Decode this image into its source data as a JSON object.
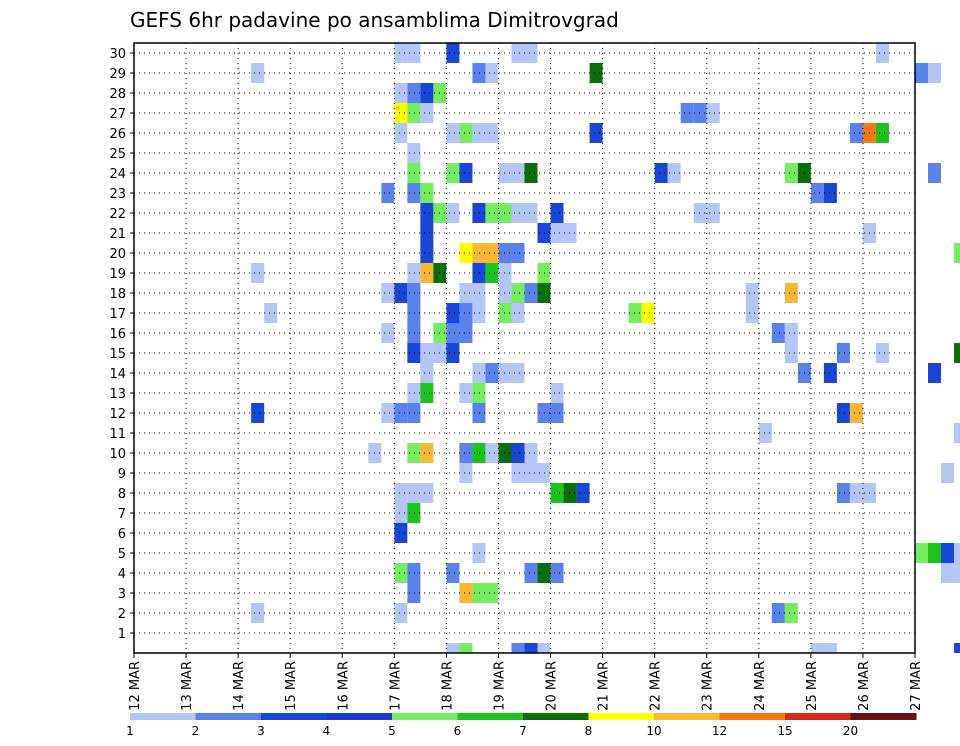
{
  "chart_data": {
    "type": "heatmap",
    "title": "GEFS 6hr padavine po ansamblima Dimitrovgrad",
    "xlabel": "",
    "ylabel": "",
    "members": [
      1,
      2,
      3,
      4,
      5,
      6,
      7,
      8,
      9,
      10,
      11,
      12,
      13,
      14,
      15,
      16,
      17,
      18,
      19,
      20,
      21,
      22,
      23,
      24,
      25,
      26,
      27,
      28,
      29,
      30
    ],
    "y_tick_labels": [
      "1",
      "2",
      "3",
      "4",
      "5",
      "6",
      "7",
      "8",
      "9",
      "10",
      "11",
      "12",
      "13",
      "14",
      "15",
      "16",
      "17",
      "18",
      "19",
      "20",
      "21",
      "22",
      "23",
      "24",
      "25",
      "26",
      "27",
      "28",
      "29",
      "30"
    ],
    "x_tick_labels": [
      "12 MAR",
      "13 MAR",
      "14 MAR",
      "15 MAR",
      "16 MAR",
      "17 MAR",
      "18 MAR",
      "19 MAR",
      "20 MAR",
      "21 MAR",
      "22 MAR",
      "23 MAR",
      "24 MAR",
      "25 MAR",
      "26 MAR",
      "27 MAR"
    ],
    "timestep_hours": 6,
    "grid": "dotted",
    "legend_position": "bottom",
    "color_scale": {
      "labels": [
        "1",
        "2",
        "3",
        "4",
        "5",
        "6",
        "7",
        "8",
        "10",
        "12",
        "15",
        "20"
      ],
      "colors": [
        "#b4c6f5",
        "#5a82ed",
        "#1846d9",
        "#1a37cf",
        "#74ee5e",
        "#1cc41c",
        "#0a6e0a",
        "#ffff00",
        "#fbb731",
        "#f57a14",
        "#d6281b",
        "#6b1010"
      ]
    },
    "cells": [
      [
        "17 MAR 00Z",
        30,
        1
      ],
      [
        "17 MAR 06Z",
        30,
        1
      ],
      [
        "18 MAR 00Z",
        30,
        3
      ],
      [
        "19 MAR 06Z",
        30,
        1
      ],
      [
        "19 MAR 12Z",
        30,
        1
      ],
      [
        "26 MAR 06Z",
        30,
        1
      ],
      [
        "14 MAR 06Z",
        29,
        1
      ],
      [
        "18 MAR 12Z",
        29,
        2
      ],
      [
        "18 MAR 18Z",
        29,
        1
      ],
      [
        "20 MAR 18Z",
        29,
        7
      ],
      [
        "27 MAR 00Z",
        29,
        2
      ],
      [
        "27 MAR 06Z",
        29,
        1
      ],
      [
        "17 MAR 00Z",
        28,
        1
      ],
      [
        "17 MAR 06Z",
        28,
        2
      ],
      [
        "17 MAR 12Z",
        28,
        3
      ],
      [
        "17 MAR 18Z",
        28,
        5
      ],
      [
        "17 MAR 00Z",
        27,
        8
      ],
      [
        "17 MAR 06Z",
        27,
        5
      ],
      [
        "17 MAR 12Z",
        27,
        1
      ],
      [
        "22 MAR 12Z",
        27,
        2
      ],
      [
        "22 MAR 18Z",
        27,
        2
      ],
      [
        "23 MAR 00Z",
        27,
        1
      ],
      [
        "17 MAR 00Z",
        26,
        1
      ],
      [
        "18 MAR 00Z",
        26,
        1
      ],
      [
        "18 MAR 06Z",
        26,
        5
      ],
      [
        "18 MAR 12Z",
        26,
        1
      ],
      [
        "18 MAR 18Z",
        26,
        1
      ],
      [
        "20 MAR 18Z",
        26,
        3
      ],
      [
        "25 MAR 18Z",
        26,
        2
      ],
      [
        "26 MAR 00Z",
        26,
        12
      ],
      [
        "26 MAR 06Z",
        26,
        6
      ],
      [
        "17 MAR 06Z",
        25,
        1
      ],
      [
        "17 MAR 06Z",
        24,
        5
      ],
      [
        "18 MAR 00Z",
        24,
        5
      ],
      [
        "18 MAR 06Z",
        24,
        3
      ],
      [
        "19 MAR 00Z",
        24,
        1
      ],
      [
        "19 MAR 06Z",
        24,
        1
      ],
      [
        "19 MAR 12Z",
        24,
        7
      ],
      [
        "22 MAR 00Z",
        24,
        3
      ],
      [
        "22 MAR 06Z",
        24,
        1
      ],
      [
        "24 MAR 12Z",
        24,
        5
      ],
      [
        "24 MAR 18Z",
        24,
        7
      ],
      [
        "27 MAR 06Z",
        24,
        2
      ],
      [
        "16 MAR 18Z",
        23,
        2
      ],
      [
        "17 MAR 06Z",
        23,
        2
      ],
      [
        "17 MAR 12Z",
        23,
        5
      ],
      [
        "25 MAR 00Z",
        23,
        2
      ],
      [
        "25 MAR 06Z",
        23,
        3
      ],
      [
        "17 MAR 12Z",
        22,
        3
      ],
      [
        "17 MAR 18Z",
        22,
        5
      ],
      [
        "18 MAR 00Z",
        22,
        1
      ],
      [
        "18 MAR 12Z",
        22,
        3
      ],
      [
        "18 MAR 18Z",
        22,
        5
      ],
      [
        "19 MAR 00Z",
        22,
        5
      ],
      [
        "19 MAR 06Z",
        22,
        1
      ],
      [
        "19 MAR 12Z",
        22,
        1
      ],
      [
        "20 MAR 00Z",
        22,
        3
      ],
      [
        "22 MAR 18Z",
        22,
        1
      ],
      [
        "23 MAR 00Z",
        22,
        1
      ],
      [
        "17 MAR 12Z",
        21,
        3
      ],
      [
        "19 MAR 18Z",
        21,
        3
      ],
      [
        "20 MAR 00Z",
        21,
        1
      ],
      [
        "20 MAR 06Z",
        21,
        1
      ],
      [
        "26 MAR 00Z",
        21,
        1
      ],
      [
        "17 MAR 12Z",
        20,
        3
      ],
      [
        "18 MAR 06Z",
        20,
        8
      ],
      [
        "18 MAR 12Z",
        20,
        10
      ],
      [
        "18 MAR 18Z",
        20,
        10
      ],
      [
        "19 MAR 00Z",
        20,
        2
      ],
      [
        "19 MAR 06Z",
        20,
        2
      ],
      [
        "27 MAR 18Z",
        20,
        5
      ],
      [
        "14 MAR 06Z",
        19,
        1
      ],
      [
        "17 MAR 06Z",
        19,
        1
      ],
      [
        "17 MAR 12Z",
        19,
        10
      ],
      [
        "17 MAR 18Z",
        19,
        7
      ],
      [
        "18 MAR 12Z",
        19,
        3
      ],
      [
        "18 MAR 18Z",
        19,
        6
      ],
      [
        "19 MAR 00Z",
        19,
        1
      ],
      [
        "19 MAR 18Z",
        19,
        5
      ],
      [
        "16 MAR 18Z",
        18,
        1
      ],
      [
        "17 MAR 00Z",
        18,
        3
      ],
      [
        "17 MAR 06Z",
        18,
        2
      ],
      [
        "18 MAR 06Z",
        18,
        1
      ],
      [
        "18 MAR 12Z",
        18,
        1
      ],
      [
        "19 MAR 00Z",
        18,
        1
      ],
      [
        "19 MAR 06Z",
        18,
        5
      ],
      [
        "19 MAR 12Z",
        18,
        2
      ],
      [
        "19 MAR 18Z",
        18,
        7
      ],
      [
        "23 MAR 18Z",
        18,
        1
      ],
      [
        "24 MAR 12Z",
        18,
        10
      ],
      [
        "14 MAR 12Z",
        17,
        1
      ],
      [
        "17 MAR 06Z",
        17,
        2
      ],
      [
        "18 MAR 00Z",
        17,
        3
      ],
      [
        "18 MAR 06Z",
        17,
        2
      ],
      [
        "18 MAR 12Z",
        17,
        1
      ],
      [
        "19 MAR 00Z",
        17,
        5
      ],
      [
        "19 MAR 06Z",
        17,
        1
      ],
      [
        "21 MAR 12Z",
        17,
        5
      ],
      [
        "21 MAR 18Z",
        17,
        8
      ],
      [
        "23 MAR 18Z",
        17,
        1
      ],
      [
        "16 MAR 18Z",
        16,
        1
      ],
      [
        "17 MAR 06Z",
        16,
        2
      ],
      [
        "17 MAR 18Z",
        16,
        5
      ],
      [
        "18 MAR 00Z",
        16,
        2
      ],
      [
        "18 MAR 06Z",
        16,
        2
      ],
      [
        "24 MAR 06Z",
        16,
        2
      ],
      [
        "24 MAR 12Z",
        16,
        1
      ],
      [
        "17 MAR 06Z",
        15,
        3
      ],
      [
        "17 MAR 12Z",
        15,
        1
      ],
      [
        "17 MAR 18Z",
        15,
        1
      ],
      [
        "18 MAR 00Z",
        15,
        3
      ],
      [
        "24 MAR 12Z",
        15,
        1
      ],
      [
        "25 MAR 12Z",
        15,
        2
      ],
      [
        "26 MAR 06Z",
        15,
        1
      ],
      [
        "27 MAR 18Z",
        15,
        7
      ],
      [
        "17 MAR 12Z",
        14,
        1
      ],
      [
        "18 MAR 12Z",
        14,
        1
      ],
      [
        "18 MAR 18Z",
        14,
        2
      ],
      [
        "19 MAR 00Z",
        14,
        1
      ],
      [
        "19 MAR 06Z",
        14,
        1
      ],
      [
        "24 MAR 18Z",
        14,
        2
      ],
      [
        "25 MAR 06Z",
        14,
        3
      ],
      [
        "27 MAR 06Z",
        14,
        3
      ],
      [
        "17 MAR 06Z",
        13,
        1
      ],
      [
        "17 MAR 12Z",
        13,
        6
      ],
      [
        "18 MAR 06Z",
        13,
        1
      ],
      [
        "18 MAR 12Z",
        13,
        5
      ],
      [
        "20 MAR 00Z",
        13,
        1
      ],
      [
        "14 MAR 06Z",
        12,
        3
      ],
      [
        "16 MAR 18Z",
        12,
        1
      ],
      [
        "17 MAR 00Z",
        12,
        2
      ],
      [
        "17 MAR 06Z",
        12,
        2
      ],
      [
        "18 MAR 12Z",
        12,
        2
      ],
      [
        "19 MAR 18Z",
        12,
        2
      ],
      [
        "20 MAR 00Z",
        12,
        2
      ],
      [
        "25 MAR 12Z",
        12,
        3
      ],
      [
        "25 MAR 18Z",
        12,
        10
      ],
      [
        "24 MAR 00Z",
        11,
        1
      ],
      [
        "27 MAR 18Z",
        11,
        1
      ],
      [
        "16 MAR 12Z",
        10,
        1
      ],
      [
        "17 MAR 06Z",
        10,
        5
      ],
      [
        "17 MAR 12Z",
        10,
        10
      ],
      [
        "18 MAR 06Z",
        10,
        2
      ],
      [
        "18 MAR 12Z",
        10,
        6
      ],
      [
        "18 MAR 18Z",
        10,
        1
      ],
      [
        "19 MAR 00Z",
        10,
        7
      ],
      [
        "19 MAR 06Z",
        10,
        3
      ],
      [
        "19 MAR 12Z",
        10,
        1
      ],
      [
        "18 MAR 06Z",
        9,
        1
      ],
      [
        "19 MAR 06Z",
        9,
        1
      ],
      [
        "19 MAR 12Z",
        9,
        1
      ],
      [
        "19 MAR 18Z",
        9,
        1
      ],
      [
        "27 MAR 12Z",
        9,
        1
      ],
      [
        "17 MAR 00Z",
        8,
        1
      ],
      [
        "17 MAR 06Z",
        8,
        1
      ],
      [
        "17 MAR 12Z",
        8,
        1
      ],
      [
        "20 MAR 00Z",
        8,
        6
      ],
      [
        "20 MAR 06Z",
        8,
        7
      ],
      [
        "20 MAR 12Z",
        8,
        3
      ],
      [
        "25 MAR 12Z",
        8,
        2
      ],
      [
        "25 MAR 18Z",
        8,
        1
      ],
      [
        "26 MAR 00Z",
        8,
        1
      ],
      [
        "17 MAR 00Z",
        7,
        1
      ],
      [
        "17 MAR 06Z",
        7,
        6
      ],
      [
        "17 MAR 00Z",
        6,
        3
      ],
      [
        "18 MAR 12Z",
        5,
        1
      ],
      [
        "27 MAR 00Z",
        5,
        5
      ],
      [
        "27 MAR 06Z",
        5,
        6
      ],
      [
        "27 MAR 12Z",
        5,
        3
      ],
      [
        "27 MAR 18Z",
        5,
        1
      ],
      [
        "17 MAR 00Z",
        4,
        5
      ],
      [
        "17 MAR 06Z",
        4,
        2
      ],
      [
        "18 MAR 00Z",
        4,
        2
      ],
      [
        "19 MAR 12Z",
        4,
        2
      ],
      [
        "19 MAR 18Z",
        4,
        7
      ],
      [
        "20 MAR 00Z",
        4,
        2
      ],
      [
        "27 MAR 12Z",
        4,
        1
      ],
      [
        "27 MAR 18Z",
        4,
        1
      ],
      [
        "17 MAR 06Z",
        3,
        2
      ],
      [
        "18 MAR 06Z",
        3,
        10
      ],
      [
        "18 MAR 12Z",
        3,
        5
      ],
      [
        "18 MAR 18Z",
        3,
        5
      ],
      [
        "14 MAR 06Z",
        2,
        1
      ],
      [
        "17 MAR 00Z",
        2,
        1
      ],
      [
        "24 MAR 06Z",
        2,
        2
      ],
      [
        "24 MAR 12Z",
        2,
        5
      ]
    ],
    "bottom_strip_cells": [
      [
        "18 MAR 00Z",
        1
      ],
      [
        "18 MAR 06Z",
        5
      ],
      [
        "19 MAR 06Z",
        2
      ],
      [
        "19 MAR 12Z",
        3
      ],
      [
        "19 MAR 18Z",
        1
      ],
      [
        "25 MAR 00Z",
        1
      ],
      [
        "25 MAR 06Z",
        1
      ],
      [
        "27 MAR 18Z",
        3
      ]
    ]
  }
}
